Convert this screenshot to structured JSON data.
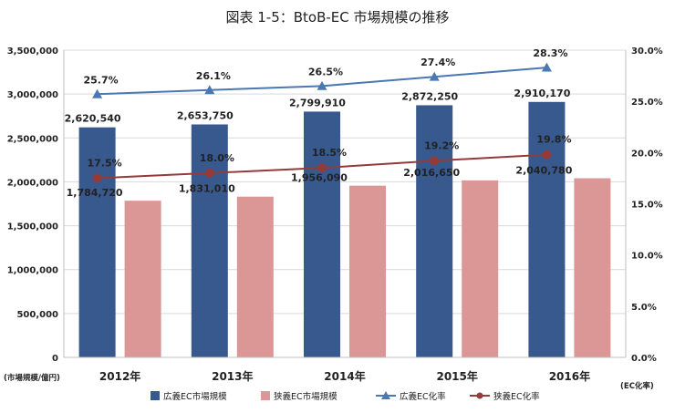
{
  "chart_data": {
    "type": "bar",
    "title": "図表 1-5：BtoB-EC 市場規模の推移",
    "categories": [
      "2012年",
      "2013年",
      "2014年",
      "2015年",
      "2016年"
    ],
    "y_left": {
      "label": "(市場規模/億円)",
      "ylim": [
        0,
        3500000
      ],
      "ticks": [
        "0",
        "500,000",
        "1,000,000",
        "1,500,000",
        "2,000,000",
        "2,500,000",
        "3,000,000",
        "3,500,000"
      ]
    },
    "y_right": {
      "label": "(EC化率)",
      "ylim": [
        0,
        30
      ],
      "ticks": [
        "0.0%",
        "5.0%",
        "10.0%",
        "15.0%",
        "20.0%",
        "25.0%",
        "30.0%"
      ]
    },
    "grid": true,
    "legend_position": "bottom",
    "series": [
      {
        "name": "広義EC市場規模",
        "kind": "bar",
        "axis": "left",
        "color": "#37598e",
        "values": [
          2620540,
          2653750,
          2799910,
          2872250,
          2910170
        ],
        "labels": [
          "2,620,540",
          "2,653,750",
          "2,799,910",
          "2,872,250",
          "2,910,170"
        ]
      },
      {
        "name": "狭義EC市場規模",
        "kind": "bar",
        "axis": "left",
        "color": "#da9795",
        "values": [
          1784720,
          1831010,
          1956090,
          2016650,
          2040780
        ],
        "labels": [
          "1,784,720",
          "1,831,010",
          "1,956,090",
          "2,016,650",
          "2,040,780"
        ]
      },
      {
        "name": "広義EC化率",
        "kind": "line",
        "axis": "right",
        "color": "#4a78b3",
        "marker": "triangle",
        "values": [
          25.7,
          26.1,
          26.5,
          27.4,
          28.3
        ],
        "labels": [
          "25.7%",
          "26.1%",
          "26.5%",
          "27.4%",
          "28.3%"
        ]
      },
      {
        "name": "狭義EC化率",
        "kind": "line",
        "axis": "right",
        "color": "#943b3a",
        "marker": "circle",
        "values": [
          17.5,
          18.0,
          18.5,
          19.2,
          19.8
        ],
        "labels": [
          "17.5%",
          "18.0%",
          "18.5%",
          "19.2%",
          "19.8%"
        ]
      }
    ]
  }
}
